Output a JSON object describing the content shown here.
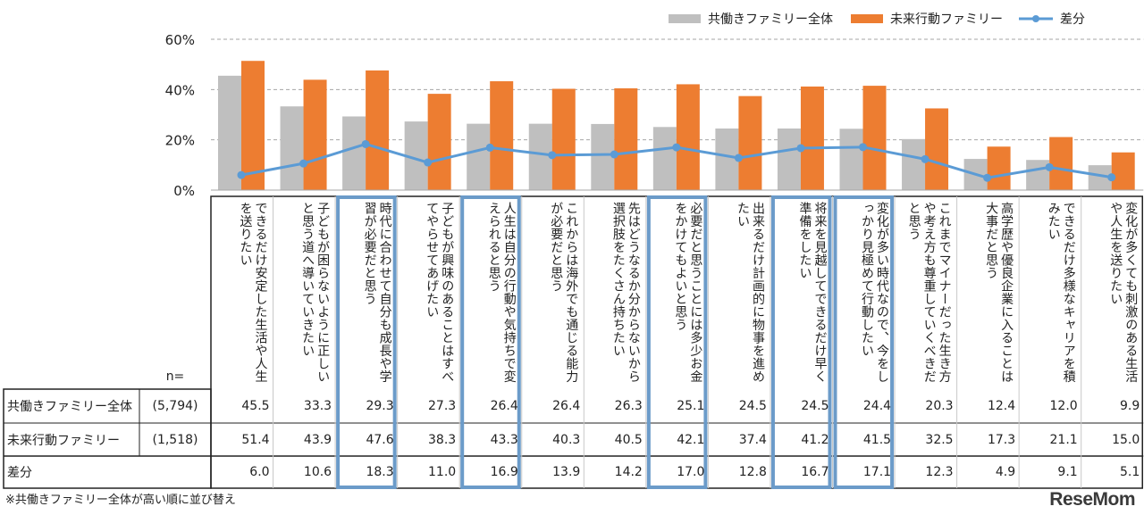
{
  "chart_data": {
    "type": "bar",
    "ylim": [
      0,
      60
    ],
    "yticks": [
      "0%",
      "20%",
      "40%",
      "60%"
    ],
    "grid": true,
    "legend_placement": "top-right",
    "categories": [
      "できるだけ安定した生活や人生を送りたい",
      "子どもが困らないように正しいと思う道へ導いていきたい",
      "時代に合わせて自分も成長や学習が必要だと思う",
      "子どもが興味のあることはすべてやらせてあげたい",
      "人生は自分の行動や気持ちで変えられると思う",
      "これからは海外でも通じる能力が必要だと思う",
      "先はどうなるか分からないから選択肢をたくさん持ちたい",
      "必要だと思うことには多少お金をかけてもよいと思う",
      "出来るだけ計画的に物事を進めたい",
      "将来を見越してできるだけ早く準備をしたい",
      "変化が多い時代なので、今をしっかり見極めて行動したい",
      "これまでマイナーだった生き方や考え方も尊重していくべきだと思う",
      "高学歴や優良企業に入ることは大事だと思う",
      "できるだけ多様なキャリアを積みたい",
      "変化が多くても刺激のある生活や人生を送りたい"
    ],
    "series": [
      {
        "name": "共働きファミリー全体",
        "kind": "bar",
        "color": "#bfbfbf",
        "n": "(5,794)",
        "values": [
          "45.5",
          "33.3",
          "29.3",
          "27.3",
          "26.4",
          "26.4",
          "26.3",
          "25.1",
          "24.5",
          "24.5",
          "24.4",
          "20.3",
          "12.4",
          "12.0",
          "9.9"
        ]
      },
      {
        "name": "未来行動ファミリー",
        "kind": "bar",
        "color": "#ed7d31",
        "n": "(1,518)",
        "values": [
          "51.4",
          "43.9",
          "47.6",
          "38.3",
          "43.3",
          "40.3",
          "40.5",
          "42.1",
          "37.4",
          "41.2",
          "41.5",
          "32.5",
          "17.3",
          "21.1",
          "15.0"
        ]
      },
      {
        "name": "差分",
        "kind": "line",
        "color": "#5b9bd5",
        "values": [
          "6.0",
          "10.6",
          "18.3",
          "11.0",
          "16.9",
          "13.9",
          "14.2",
          "17.0",
          "12.8",
          "16.7",
          "17.1",
          "12.3",
          "4.9",
          "9.1",
          "5.1"
        ]
      }
    ],
    "highlighted_categories": [
      2,
      4,
      7,
      9,
      10
    ],
    "highlight_color": "#6b9bc9"
  },
  "table": {
    "n_label": "n="
  },
  "footnote": "※共働きファミリー全体が高い順に並び替え",
  "logo": "ReseMom"
}
